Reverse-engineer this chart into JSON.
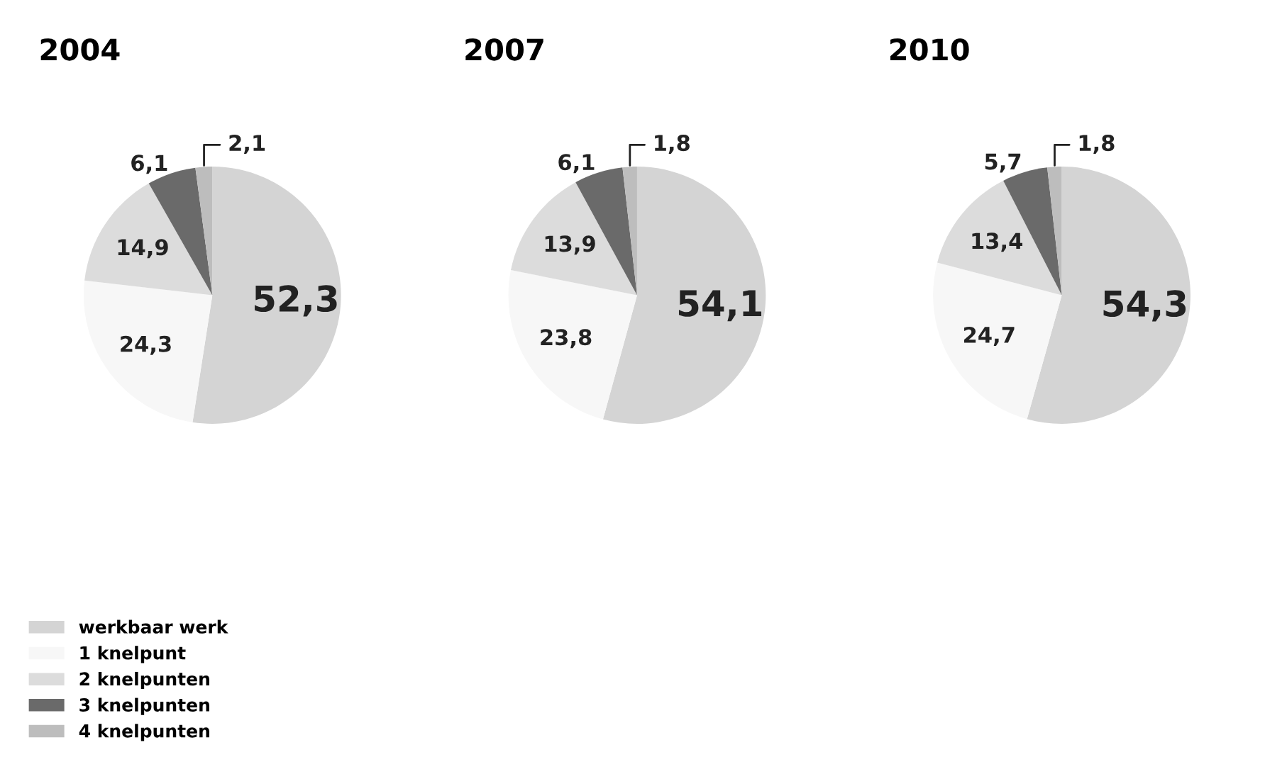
{
  "chart_data": [
    {
      "type": "pie",
      "title": "2004",
      "categories": [
        "werkbaar werk",
        "1 knelpunt",
        "2 knelpunten",
        "3 knelpunten",
        "4 knelpunten"
      ],
      "values": [
        52.3,
        24.3,
        14.9,
        6.1,
        2.1
      ],
      "value_labels": [
        "52,3",
        "24,3",
        "14,9",
        "6,1",
        "2,1"
      ],
      "colors": [
        "#d4d4d4",
        "#f7f7f7",
        "#dcdcdc",
        "#6a6a6a",
        "#bdbdbd"
      ],
      "legend": "bottom left"
    },
    {
      "type": "pie",
      "title": "2007",
      "categories": [
        null,
        null,
        null,
        null,
        null
      ],
      "values": [
        54.1,
        23.8,
        13.9,
        6.1,
        1.8
      ],
      "value_labels": [
        "54,1",
        "23,8",
        "13,9",
        "6,1",
        "1,8"
      ],
      "colors": [
        "#d4d4d4",
        "#f7f7f7",
        "#dcdcdc",
        "#6a6a6a",
        "#bdbdbd"
      ]
    },
    {
      "type": "pie",
      "title": "2010",
      "categories": [
        null,
        null,
        null,
        null,
        null
      ],
      "values": [
        54.3,
        24.7,
        13.4,
        5.7,
        1.8
      ],
      "value_labels": [
        "54,3",
        "24,7",
        "13,4",
        "5,7",
        "1,8"
      ],
      "colors": [
        "#d4d4d4",
        "#f7f7f7",
        "#dcdcdc",
        "#6a6a6a",
        "#bdbdbd"
      ]
    }
  ]
}
